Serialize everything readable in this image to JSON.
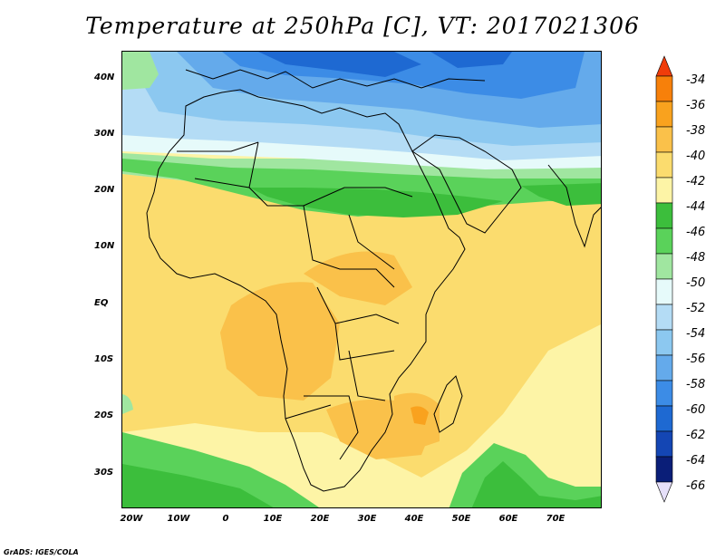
{
  "title": "Temperature at 250hPa [C], VT: 2017021306",
  "credit": "GrADS: IGES/COLA",
  "lat_labels": [
    "40N",
    "30N",
    "20N",
    "10N",
    "EQ",
    "10S",
    "20S",
    "30S"
  ],
  "lon_labels": [
    "20W",
    "10W",
    "0",
    "10E",
    "20E",
    "30E",
    "40E",
    "50E",
    "60E",
    "70E"
  ],
  "colorbar": {
    "labels": [
      "-34",
      "-36",
      "-38",
      "-40",
      "-42",
      "-44",
      "-46",
      "-48",
      "-50",
      "-52",
      "-54",
      "-56",
      "-58",
      "-60",
      "-62",
      "-64",
      "-66"
    ],
    "colors": [
      "#f03c0a",
      "#f7800a",
      "#f9a21e",
      "#fac14a",
      "#fbdc6e",
      "#fdf4a6",
      "#3cbe3c",
      "#5ad25a",
      "#a0e6a0",
      "#e6fafa",
      "#b4dcf5",
      "#8cc8f0",
      "#64aaeb",
      "#3c8ce6",
      "#1e69d2",
      "#1446b4",
      "#0a1e78",
      "#e6e0fa"
    ]
  },
  "map_colors": {
    "pale_yellow": "#fdf4a6",
    "yellow": "#fbdc6e",
    "orange": "#fac14a",
    "deep_orange": "#f9a21e",
    "green": "#3cbe3c",
    "mid_green": "#5ad25a",
    "light_green": "#a0e6a0",
    "pale_cyan": "#e6fafa",
    "light_blue": "#b4dcf5",
    "blue": "#8cc8f0",
    "mid_blue": "#64aaeb",
    "deep_blue": "#3c8ce6",
    "darker_blue": "#1e69d2"
  }
}
